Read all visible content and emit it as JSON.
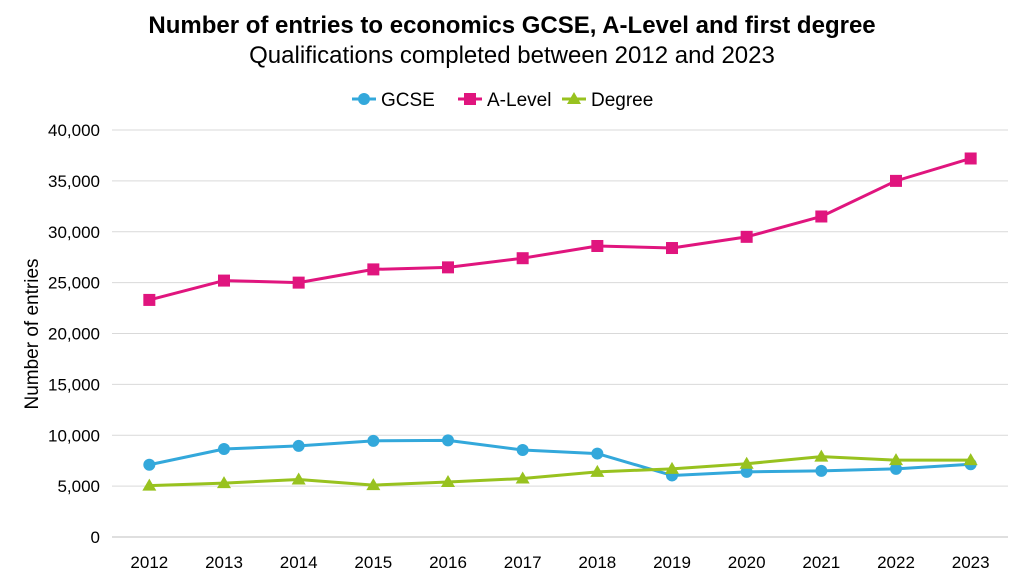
{
  "chart_data": {
    "type": "line",
    "title": "Number of entries to economics GCSE, A-Level and first degree",
    "subtitle": "Qualifications completed between 2012 and 2023",
    "xlabel": "",
    "ylabel": "Number of entries",
    "categories": [
      "2012",
      "2013",
      "2014",
      "2015",
      "2016",
      "2017",
      "2018",
      "2019",
      "2020",
      "2021",
      "2022",
      "2023"
    ],
    "y_ticks": [
      "0",
      "5,000",
      "10,000",
      "15,000",
      "20,000",
      "25,000",
      "30,000",
      "35,000",
      "40,000"
    ],
    "ylim": [
      0,
      40000
    ],
    "grid": true,
    "legend_position": "top",
    "series": [
      {
        "name": "GCSE",
        "color": "#33A8DB",
        "marker": "circle",
        "values": [
          7100,
          8650,
          8950,
          9450,
          9500,
          8550,
          8200,
          6050,
          6400,
          6500,
          6700,
          7150
        ]
      },
      {
        "name": "A-Level",
        "color": "#E0157E",
        "marker": "square",
        "values": [
          23300,
          25200,
          25000,
          26300,
          26500,
          27400,
          28600,
          28400,
          29500,
          31500,
          35000,
          37200
        ]
      },
      {
        "name": "Degree",
        "color": "#98C21F",
        "marker": "triangle",
        "values": [
          5050,
          5300,
          5650,
          5100,
          5400,
          5750,
          6400,
          6700,
          7200,
          7900,
          7550,
          7550
        ]
      }
    ]
  }
}
